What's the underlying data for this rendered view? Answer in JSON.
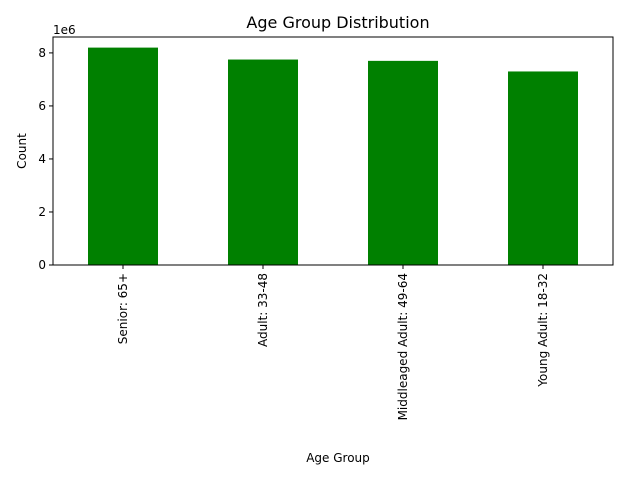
{
  "chart_data": {
    "type": "bar",
    "title": "Age Group Distribution",
    "xlabel": "Age Group",
    "ylabel": "Count",
    "y_offset_label": "1e6",
    "y_scale_factor": 1000000,
    "categories": [
      "Senior: 65+",
      "Adult: 33-48",
      "Middleaged Adult: 49-64",
      "Young Adult: 18-32"
    ],
    "values": [
      8200000,
      7750000,
      7700000,
      7300000
    ],
    "ylim": [
      0,
      8600000
    ],
    "yticks": [
      0,
      2000000,
      4000000,
      6000000,
      8000000
    ],
    "ytick_labels": [
      "0",
      "2",
      "4",
      "6",
      "8"
    ],
    "bar_color": "#008000",
    "grid": false,
    "legend": "none"
  }
}
